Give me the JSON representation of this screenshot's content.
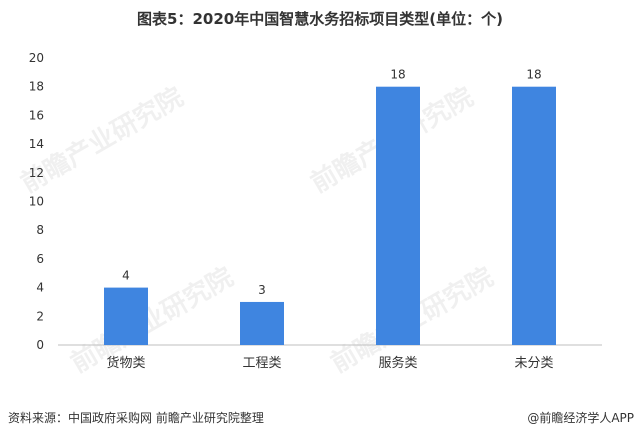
{
  "title": "图表5：2020年中国智慧水务招标项目类型(单位：个)",
  "source": "资料来源：中国政府采购网 前瞻产业研究院整理",
  "credit": "@前瞻经济学人APP",
  "watermark": "前瞻产业研究院",
  "colors": {
    "bar": "#3f85e0"
  },
  "chart_data": {
    "type": "bar",
    "title": "图表5：2020年中国智慧水务招标项目类型(单位：个)",
    "categories": [
      "货物类",
      "工程类",
      "服务类",
      "未分类"
    ],
    "values": [
      4,
      3,
      18,
      18
    ],
    "yticks": [
      0,
      2,
      4,
      6,
      8,
      10,
      12,
      14,
      16,
      18,
      20
    ],
    "ylim": [
      0,
      20
    ],
    "grid": false,
    "data_labels": true
  }
}
